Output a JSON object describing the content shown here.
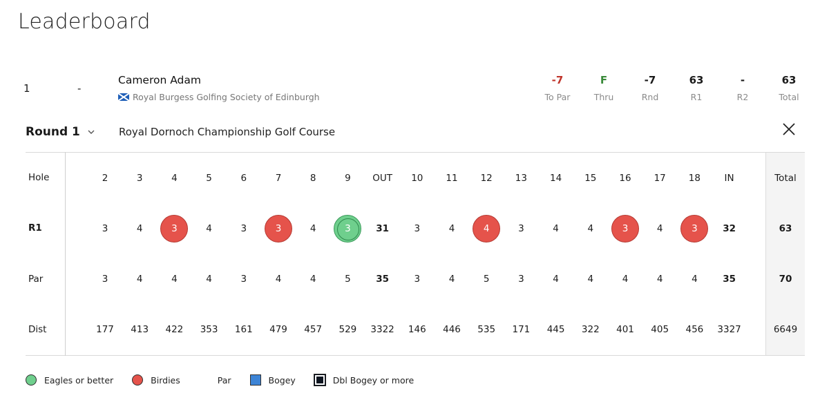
{
  "title": "Leaderboard",
  "player": {
    "position": "1",
    "movement": "-",
    "name": "Cameron Adam",
    "club": "Royal Burgess Golfing Society of Edinburgh"
  },
  "stats": [
    {
      "value": "-7",
      "label": "To Par",
      "color": "#c0352b"
    },
    {
      "value": "F",
      "label": "Thru",
      "color": "#3a8a3a"
    },
    {
      "value": "-7",
      "label": "Rnd",
      "color": "#1b1b1b"
    },
    {
      "value": "63",
      "label": "R1",
      "color": "#1b1b1b"
    },
    {
      "value": "-",
      "label": "R2",
      "color": "#1b1b1b"
    },
    {
      "value": "63",
      "label": "Total",
      "color": "#1b1b1b"
    }
  ],
  "round": {
    "label": "Round 1",
    "course": "Royal Dornoch Championship Golf Course"
  },
  "scorecard": {
    "row_labels": {
      "hole": "Hole",
      "score": "R1",
      "par": "Par",
      "dist": "Dist"
    },
    "holes": [
      "2",
      "3",
      "4",
      "5",
      "6",
      "7",
      "8",
      "9",
      "OUT",
      "10",
      "11",
      "12",
      "13",
      "14",
      "15",
      "16",
      "17",
      "18",
      "IN"
    ],
    "scores": [
      "3",
      "4",
      "3",
      "4",
      "3",
      "3",
      "4",
      "3",
      "31",
      "3",
      "4",
      "4",
      "3",
      "4",
      "4",
      "3",
      "4",
      "3",
      "32"
    ],
    "score_types": [
      "par",
      "par",
      "birdie",
      "par",
      "par",
      "birdie",
      "par",
      "eagle",
      "sub",
      "par",
      "par",
      "birdie",
      "par",
      "par",
      "par",
      "birdie",
      "par",
      "birdie",
      "sub"
    ],
    "par": [
      "3",
      "4",
      "4",
      "4",
      "3",
      "4",
      "4",
      "5",
      "35",
      "3",
      "4",
      "5",
      "3",
      "4",
      "4",
      "4",
      "4",
      "4",
      "35"
    ],
    "dist": [
      "177",
      "413",
      "422",
      "353",
      "161",
      "479",
      "457",
      "529",
      "3322",
      "146",
      "446",
      "535",
      "171",
      "445",
      "322",
      "401",
      "405",
      "456",
      "3327"
    ],
    "total_label": "Total",
    "total_score": "63",
    "total_par": "70",
    "total_dist": "6649"
  },
  "legend": {
    "eagle": "Eagles or better",
    "birdie": "Birdies",
    "par": "Par",
    "bogey": "Bogey",
    "double_bogey": "Dbl Bogey or more"
  },
  "colors": {
    "birdie": "#e5534b",
    "eagle": "#6fcf8d",
    "bogey": "#3d84d6",
    "double_bogey": "#0e1520"
  },
  "icons": {
    "club_flag": "scotland-flag-icon",
    "round_dropdown": "chevron-down-icon",
    "close": "close-icon"
  }
}
